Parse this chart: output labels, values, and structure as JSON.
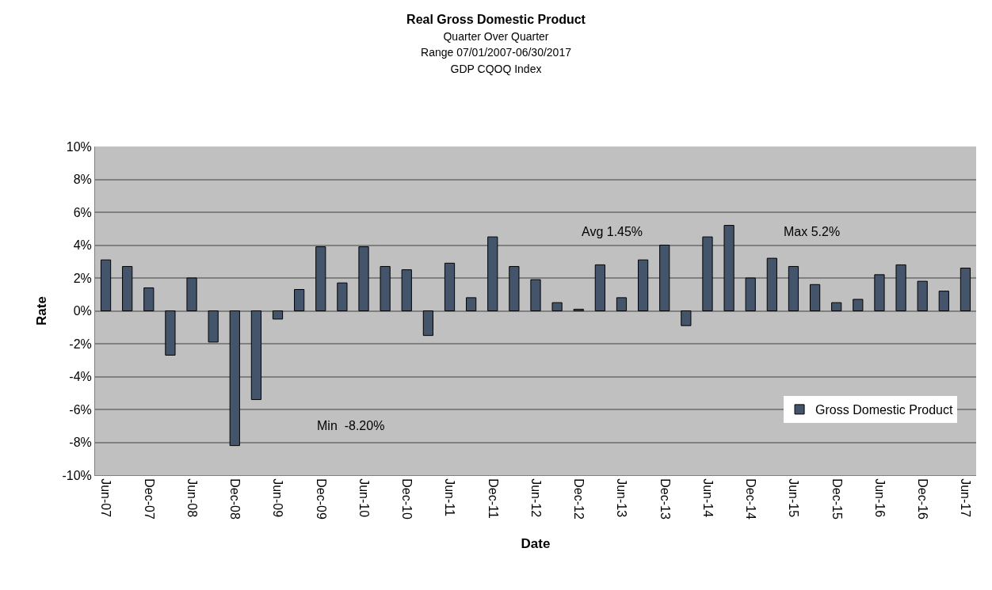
{
  "chart_data": {
    "type": "bar",
    "title": "Real Gross Domestic Product",
    "subtitle": "Quarter Over Quarter\nRange 07/01/2007-06/30/2017\nGDP CQOQ Index",
    "xlabel": "Date",
    "ylabel": "Rate",
    "categories": [
      "Jun-07",
      null,
      "Dec-07",
      null,
      "Jun-08",
      null,
      "Dec-08",
      null,
      "Jun-09",
      null,
      "Dec-09",
      null,
      "Jun-10",
      null,
      "Dec-10",
      null,
      "Jun-11",
      null,
      "Dec-11",
      null,
      "Jun-12",
      null,
      "Dec-12",
      null,
      "Jun-13",
      null,
      "Dec-13",
      null,
      "Jun-14",
      null,
      "Dec-14",
      null,
      "Jun-15",
      null,
      "Dec-15",
      null,
      "Jun-16",
      null,
      "Dec-16",
      null,
      "Jun-17"
    ],
    "series": [
      {
        "name": "Gross Domestic Product",
        "color": "#44546a",
        "values": [
          3.1,
          2.7,
          1.4,
          -2.7,
          2.0,
          -1.9,
          -8.2,
          -5.4,
          -0.5,
          1.3,
          3.9,
          1.7,
          3.9,
          2.7,
          2.5,
          -1.5,
          2.9,
          0.8,
          4.5,
          2.7,
          1.9,
          0.5,
          0.1,
          2.8,
          0.8,
          3.1,
          4.0,
          -0.9,
          4.5,
          5.2,
          2.0,
          3.2,
          2.7,
          1.6,
          0.5,
          0.7,
          2.2,
          2.8,
          1.8,
          1.2,
          2.6
        ]
      }
    ],
    "annotations": [
      "Min  -8.20%",
      "Avg 1.45%",
      "Max 5.2%"
    ],
    "ylim": [
      -10,
      10
    ],
    "yticks": [
      {
        "value": -10,
        "label": "-10%"
      },
      {
        "value": -8,
        "label": "-8%"
      },
      {
        "value": -6,
        "label": "-6%"
      },
      {
        "value": -4,
        "label": "-4%"
      },
      {
        "value": -2,
        "label": "-2%"
      },
      {
        "value": 0,
        "label": "0%"
      },
      {
        "value": 2,
        "label": "2%"
      },
      {
        "value": 4,
        "label": "4%"
      },
      {
        "value": 6,
        "label": "6%"
      },
      {
        "value": 8,
        "label": "8%"
      },
      {
        "value": 10,
        "label": "10%"
      }
    ],
    "grid": "y",
    "legend": "bottom right"
  }
}
